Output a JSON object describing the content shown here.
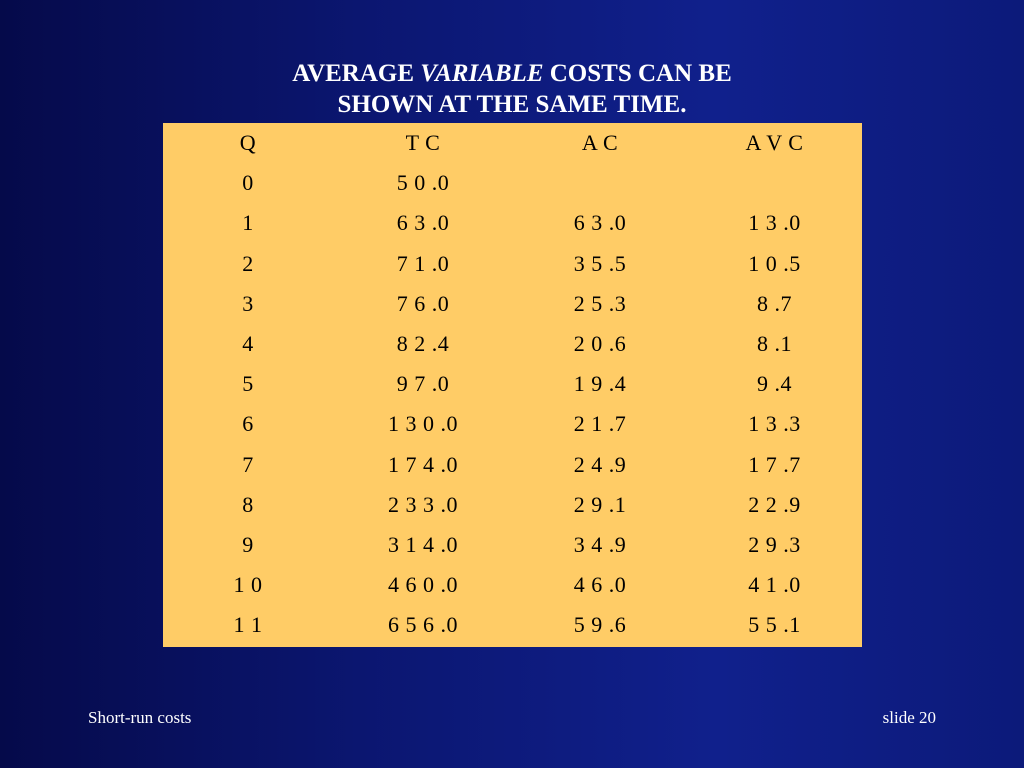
{
  "title": {
    "line1_prefix": "AVERAGE ",
    "line1_italic": "VARIABLE",
    "line1_suffix": " COSTS CAN BE",
    "line2": "SHOWN AT THE SAME TIME."
  },
  "table": {
    "headers": [
      "Q",
      "T C",
      "A C",
      "A V C"
    ],
    "rows": [
      [
        "0",
        "5 0 .0",
        "",
        ""
      ],
      [
        "1",
        "6 3 .0",
        "6 3 .0",
        "1 3 .0"
      ],
      [
        "2",
        "7 1 .0",
        "3 5 .5",
        "1 0 .5"
      ],
      [
        "3",
        "7 6 .0",
        "2 5 .3",
        "8 .7"
      ],
      [
        "4",
        "8 2 .4",
        "2 0 .6",
        "8 .1"
      ],
      [
        "5",
        "9 7 .0",
        "1 9 .4",
        "9 .4"
      ],
      [
        "6",
        "1 3 0 .0",
        "2 1 .7",
        "1 3 .3"
      ],
      [
        "7",
        "1 7 4 .0",
        "2 4 .9",
        "1 7 .7"
      ],
      [
        "8",
        "2 3 3 .0",
        "2 9 .1",
        "2 2 .9"
      ],
      [
        "9",
        "3 1 4 .0",
        "3 4 .9",
        "2 9 .3"
      ],
      [
        "1 0",
        "4 6 0 .0",
        "4 6 .0",
        "4 1 .0"
      ],
      [
        "1 1",
        "6 5 6 .0",
        "5 9 .6",
        "5 5 .1"
      ]
    ]
  },
  "footer": {
    "left": "Short-run costs",
    "right": "slide 20"
  },
  "colors": {
    "background_dark": "#050a4a",
    "background_light": "#10208c",
    "table_fill": "#ffcc66",
    "text_light": "#ffffff",
    "text_dark": "#000000"
  }
}
